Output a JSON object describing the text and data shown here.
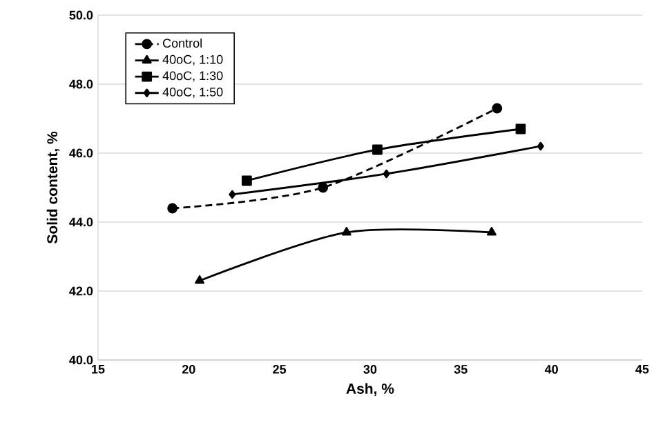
{
  "chart_data": {
    "type": "line",
    "xlabel": "Ash, %",
    "ylabel": "Solid content, %",
    "xlim": [
      15,
      45
    ],
    "xticks": [
      15,
      20,
      25,
      30,
      35,
      40,
      45
    ],
    "ylim": [
      40,
      50
    ],
    "yticks": [
      {
        "value": 40,
        "label": "40.0"
      },
      {
        "value": 42,
        "label": "42.0"
      },
      {
        "value": 44,
        "label": "44.0"
      },
      {
        "value": 46,
        "label": "46.0"
      },
      {
        "value": 48,
        "label": "48.0"
      },
      {
        "value": 50,
        "label": "50.0"
      }
    ],
    "grid": "y",
    "legend": "top left",
    "series": [
      {
        "name": "Control",
        "color": "#000000",
        "marker": "circle",
        "line_style": "dashed",
        "x": [
          19.1,
          27.4,
          37.0
        ],
        "values": [
          44.4,
          45.0,
          47.3
        ]
      },
      {
        "name": "40oC, 1:10",
        "color": "#000000",
        "marker": "triangle",
        "line_style": "solid",
        "x": [
          20.6,
          28.7,
          36.7
        ],
        "values": [
          42.3,
          43.7,
          43.7
        ]
      },
      {
        "name": "40oC, 1:30",
        "color": "#000000",
        "marker": "square",
        "line_style": "solid",
        "x": [
          23.2,
          30.4,
          38.3
        ],
        "values": [
          45.2,
          46.1,
          46.7
        ]
      },
      {
        "name": "40oC, 1:50",
        "color": "#000000",
        "marker": "diamond",
        "line_style": "solid",
        "x": [
          22.4,
          30.9,
          39.4
        ],
        "values": [
          44.8,
          45.4,
          46.2
        ]
      }
    ]
  }
}
